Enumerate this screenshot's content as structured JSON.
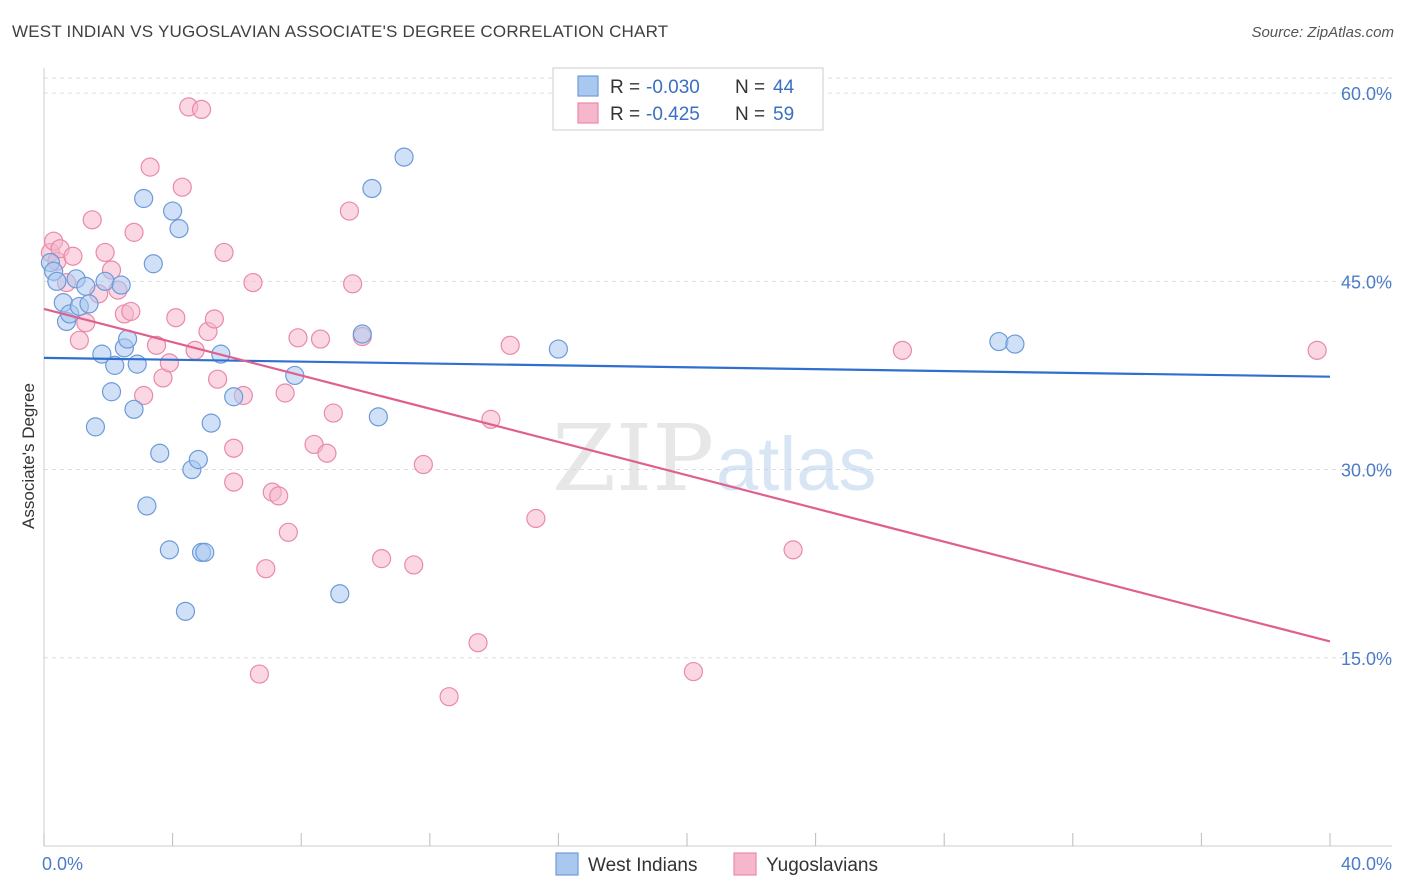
{
  "header": {
    "title": "WEST INDIAN VS YUGOSLAVIAN ASSOCIATE'S DEGREE CORRELATION CHART",
    "source": "Source: ZipAtlas.com"
  },
  "watermark": {
    "zip": "ZIP",
    "atlas": "atlas"
  },
  "colors": {
    "blue_fill": "#a9c8f0",
    "blue_stroke": "#6e9ad8",
    "blue_line": "#2f6fcf",
    "pink_fill": "#f6b6cc",
    "pink_stroke": "#e98aa9",
    "pink_line": "#e0608d",
    "tick": "#4a7cc8",
    "grid": "#dddddd"
  },
  "legend_top": {
    "rows": [
      {
        "r_label": "R = ",
        "r_value": "-0.030",
        "n_label": "N = ",
        "n_value": "44",
        "series": "blue"
      },
      {
        "r_label": "R = ",
        "r_value": "-0.425",
        "n_label": "N = ",
        "n_value": "59",
        "series": "pink"
      }
    ]
  },
  "chart_data": {
    "type": "scatter",
    "title": "WEST INDIAN VS YUGOSLAVIAN ASSOCIATE'S DEGREE CORRELATION CHART",
    "xlabel": "",
    "ylabel": "Associate's Degree",
    "xlim": [
      0,
      40
    ],
    "ylim": [
      0,
      62
    ],
    "x_tick_labels": [
      "0.0%",
      "40.0%"
    ],
    "y_ticks": [
      15,
      30,
      45,
      60
    ],
    "y_tick_labels": [
      "15.0%",
      "30.0%",
      "45.0%",
      "60.0%"
    ],
    "grid": true,
    "legend_position": "bottom-center",
    "series": [
      {
        "name": "West Indians",
        "color": "#a9c8f0",
        "trend": {
          "x": [
            0,
            40
          ],
          "y": [
            38.9,
            37.4
          ]
        },
        "points": [
          {
            "x": 0.2,
            "y": 46.5
          },
          {
            "x": 0.3,
            "y": 45.8
          },
          {
            "x": 0.4,
            "y": 45.0
          },
          {
            "x": 0.6,
            "y": 43.3
          },
          {
            "x": 0.7,
            "y": 41.8
          },
          {
            "x": 0.8,
            "y": 42.4
          },
          {
            "x": 1.0,
            "y": 45.2
          },
          {
            "x": 1.1,
            "y": 43.0
          },
          {
            "x": 1.3,
            "y": 44.6
          },
          {
            "x": 1.4,
            "y": 43.2
          },
          {
            "x": 1.6,
            "y": 33.4
          },
          {
            "x": 1.8,
            "y": 39.2
          },
          {
            "x": 1.9,
            "y": 45.0
          },
          {
            "x": 2.1,
            "y": 36.2
          },
          {
            "x": 2.2,
            "y": 38.3
          },
          {
            "x": 2.4,
            "y": 44.7
          },
          {
            "x": 2.5,
            "y": 39.7
          },
          {
            "x": 2.6,
            "y": 40.4
          },
          {
            "x": 2.8,
            "y": 34.8
          },
          {
            "x": 2.9,
            "y": 38.4
          },
          {
            "x": 3.1,
            "y": 51.6
          },
          {
            "x": 3.2,
            "y": 27.1
          },
          {
            "x": 3.4,
            "y": 46.4
          },
          {
            "x": 3.6,
            "y": 31.3
          },
          {
            "x": 3.9,
            "y": 23.6
          },
          {
            "x": 4.0,
            "y": 50.6
          },
          {
            "x": 4.2,
            "y": 49.2
          },
          {
            "x": 4.4,
            "y": 18.7
          },
          {
            "x": 4.6,
            "y": 30.0
          },
          {
            "x": 4.8,
            "y": 30.8
          },
          {
            "x": 4.9,
            "y": 23.4
          },
          {
            "x": 5.0,
            "y": 23.4
          },
          {
            "x": 5.2,
            "y": 33.7
          },
          {
            "x": 5.5,
            "y": 39.2
          },
          {
            "x": 5.9,
            "y": 35.8
          },
          {
            "x": 7.8,
            "y": 37.5
          },
          {
            "x": 9.2,
            "y": 20.1
          },
          {
            "x": 9.9,
            "y": 40.8
          },
          {
            "x": 10.2,
            "y": 52.4
          },
          {
            "x": 10.4,
            "y": 34.2
          },
          {
            "x": 11.2,
            "y": 54.9
          },
          {
            "x": 16.0,
            "y": 39.6
          },
          {
            "x": 29.7,
            "y": 40.2
          },
          {
            "x": 30.2,
            "y": 40.0
          }
        ]
      },
      {
        "name": "Yugoslavians",
        "color": "#f6b6cc",
        "trend": {
          "x": [
            0,
            40
          ],
          "y": [
            42.8,
            16.3
          ]
        },
        "points": [
          {
            "x": 0.2,
            "y": 47.3
          },
          {
            "x": 0.3,
            "y": 48.2
          },
          {
            "x": 0.4,
            "y": 46.6
          },
          {
            "x": 0.5,
            "y": 47.6
          },
          {
            "x": 0.7,
            "y": 44.9
          },
          {
            "x": 0.9,
            "y": 47.0
          },
          {
            "x": 1.1,
            "y": 40.3
          },
          {
            "x": 1.3,
            "y": 41.7
          },
          {
            "x": 1.5,
            "y": 49.9
          },
          {
            "x": 1.7,
            "y": 44.0
          },
          {
            "x": 1.9,
            "y": 47.3
          },
          {
            "x": 2.1,
            "y": 45.9
          },
          {
            "x": 2.3,
            "y": 44.3
          },
          {
            "x": 2.5,
            "y": 42.4
          },
          {
            "x": 2.7,
            "y": 42.6
          },
          {
            "x": 2.8,
            "y": 48.9
          },
          {
            "x": 3.1,
            "y": 35.9
          },
          {
            "x": 3.3,
            "y": 54.1
          },
          {
            "x": 3.5,
            "y": 39.9
          },
          {
            "x": 3.7,
            "y": 37.3
          },
          {
            "x": 3.9,
            "y": 38.5
          },
          {
            "x": 4.1,
            "y": 42.1
          },
          {
            "x": 4.3,
            "y": 52.5
          },
          {
            "x": 4.5,
            "y": 58.9
          },
          {
            "x": 4.7,
            "y": 39.5
          },
          {
            "x": 4.9,
            "y": 58.7
          },
          {
            "x": 5.1,
            "y": 41.0
          },
          {
            "x": 5.3,
            "y": 42.0
          },
          {
            "x": 5.4,
            "y": 37.2
          },
          {
            "x": 5.6,
            "y": 47.3
          },
          {
            "x": 5.9,
            "y": 31.7
          },
          {
            "x": 5.9,
            "y": 29.0
          },
          {
            "x": 6.2,
            "y": 35.9
          },
          {
            "x": 6.5,
            "y": 44.9
          },
          {
            "x": 6.7,
            "y": 13.7
          },
          {
            "x": 6.9,
            "y": 22.1
          },
          {
            "x": 7.1,
            "y": 28.2
          },
          {
            "x": 7.3,
            "y": 27.9
          },
          {
            "x": 7.5,
            "y": 36.1
          },
          {
            "x": 7.6,
            "y": 25.0
          },
          {
            "x": 7.9,
            "y": 40.5
          },
          {
            "x": 8.4,
            "y": 32.0
          },
          {
            "x": 8.6,
            "y": 40.4
          },
          {
            "x": 8.8,
            "y": 31.3
          },
          {
            "x": 9.0,
            "y": 34.5
          },
          {
            "x": 9.5,
            "y": 50.6
          },
          {
            "x": 9.6,
            "y": 44.8
          },
          {
            "x": 9.9,
            "y": 40.6
          },
          {
            "x": 10.5,
            "y": 22.9
          },
          {
            "x": 11.5,
            "y": 22.4
          },
          {
            "x": 11.8,
            "y": 30.4
          },
          {
            "x": 12.6,
            "y": 11.9
          },
          {
            "x": 13.5,
            "y": 16.2
          },
          {
            "x": 13.9,
            "y": 34.0
          },
          {
            "x": 14.5,
            "y": 39.9
          },
          {
            "x": 15.3,
            "y": 26.1
          },
          {
            "x": 20.2,
            "y": 13.9
          },
          {
            "x": 23.3,
            "y": 23.6
          },
          {
            "x": 26.7,
            "y": 39.5
          },
          {
            "x": 39.6,
            "y": 39.5
          }
        ]
      }
    ]
  }
}
